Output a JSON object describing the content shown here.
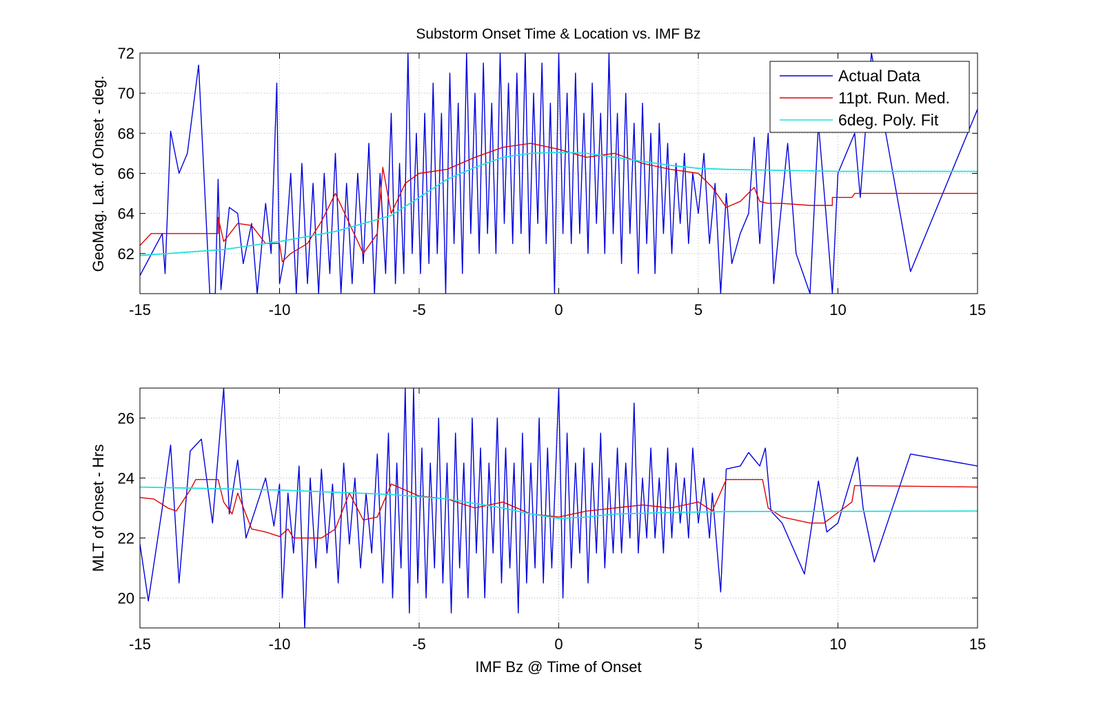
{
  "title": "Substorm Onset Time & Location vs. IMF Bz",
  "colors": {
    "actual": "#0000dd",
    "median": "#e00000",
    "fit": "#20e0e0",
    "grid": "#b0b0b0"
  },
  "legend": {
    "placement": "top-right",
    "entries": [
      "Actual Data",
      "11pt. Run. Med.",
      "6deg. Poly. Fit"
    ]
  },
  "chart_data": [
    {
      "type": "line",
      "xlabel": "",
      "ylabel": "GeoMag. Lat. of Onset - deg.",
      "xlim": [
        -15,
        15
      ],
      "ylim": [
        60,
        72
      ],
      "xticks": [
        -15,
        -10,
        -5,
        0,
        5,
        10,
        15
      ],
      "yticks": [
        62,
        64,
        66,
        68,
        70,
        72
      ],
      "grid": true,
      "series": [
        {
          "name": "Actual Data",
          "color": "#0000dd",
          "x": [
            -15,
            -14.2,
            -14.1,
            -13.9,
            -13.6,
            -13.3,
            -12.9,
            -12.5,
            -12.3,
            -12.2,
            -12.1,
            -11.8,
            -11.5,
            -11.3,
            -11,
            -10.8,
            -10.5,
            -10.3,
            -10.1,
            -10,
            -9.8,
            -9.6,
            -9.4,
            -9.2,
            -9,
            -8.8,
            -8.6,
            -8.4,
            -8.2,
            -8,
            -7.8,
            -7.6,
            -7.4,
            -7.2,
            -7,
            -6.8,
            -6.6,
            -6.4,
            -6.2,
            -6,
            -5.85,
            -5.7,
            -5.55,
            -5.4,
            -5.25,
            -5.1,
            -4.95,
            -4.8,
            -4.65,
            -4.5,
            -4.35,
            -4.2,
            -4.05,
            -3.9,
            -3.75,
            -3.6,
            -3.45,
            -3.3,
            -3.15,
            -3,
            -2.85,
            -2.7,
            -2.55,
            -2.4,
            -2.25,
            -2.1,
            -1.95,
            -1.8,
            -1.65,
            -1.5,
            -1.35,
            -1.2,
            -1.05,
            -0.9,
            -0.75,
            -0.6,
            -0.45,
            -0.3,
            -0.15,
            0,
            0.15,
            0.3,
            0.45,
            0.6,
            0.75,
            0.9,
            1.05,
            1.2,
            1.35,
            1.5,
            1.65,
            1.8,
            1.95,
            2.1,
            2.25,
            2.4,
            2.55,
            2.7,
            2.85,
            3,
            3.15,
            3.3,
            3.45,
            3.6,
            3.75,
            3.9,
            4.05,
            4.2,
            4.35,
            4.5,
            4.65,
            4.8,
            5,
            5.2,
            5.4,
            5.6,
            5.8,
            6,
            6.2,
            6.5,
            6.8,
            7,
            7.2,
            7.5,
            7.7,
            8.2,
            8.5,
            9,
            9.3,
            9.6,
            9.8,
            10,
            10.6,
            10.8,
            11.2,
            12.6,
            15
          ],
          "y": [
            60.9,
            63,
            61,
            68.1,
            66,
            67,
            71.4,
            60,
            60,
            65.7,
            60.2,
            64.3,
            64,
            61.5,
            63.5,
            60,
            64.5,
            62,
            70.5,
            60.5,
            62,
            66,
            60,
            66.5,
            60.5,
            65.5,
            60,
            66,
            61,
            67,
            60,
            65.5,
            60.5,
            66,
            61.5,
            67.5,
            60,
            66,
            61,
            69,
            60.5,
            66.5,
            61,
            72,
            62,
            68,
            61,
            69,
            61.5,
            70.5,
            62,
            69,
            60,
            71,
            62.5,
            69.5,
            61,
            72,
            63,
            70,
            62,
            71.5,
            63,
            69.5,
            62,
            72,
            63.5,
            70.5,
            62.5,
            71,
            63,
            72,
            62,
            70,
            63.5,
            71.5,
            62.5,
            69.5,
            60,
            72,
            63,
            70,
            62.5,
            71,
            63,
            69,
            62,
            70.5,
            63.5,
            69,
            62,
            72,
            63,
            69,
            61.5,
            70,
            63,
            68.5,
            61,
            69.5,
            62.5,
            68,
            61,
            68.5,
            63,
            67.5,
            62,
            66.5,
            63.5,
            67,
            62.5,
            66,
            64,
            67,
            62.5,
            65.5,
            60,
            65,
            61.5,
            63,
            64,
            67.8,
            62.5,
            68,
            60.5,
            67.5,
            62,
            60,
            68.5,
            63.5,
            60,
            66,
            68,
            64.8,
            72,
            61.1,
            69.2
          ]
        },
        {
          "name": "11pt. Run. Med.",
          "color": "#e00000",
          "x": [
            -15,
            -14.6,
            -12.2,
            -12.2,
            -12,
            -11.5,
            -11,
            -10.5,
            -10,
            -9.9,
            -9.6,
            -9,
            -8.5,
            -8,
            -7.5,
            -7,
            -6.5,
            -6.3,
            -6,
            -5.5,
            -5,
            -4,
            -3,
            -2,
            -1,
            0,
            1,
            2,
            3,
            4,
            5,
            5.5,
            6,
            6.5,
            7,
            7.2,
            7.5,
            8,
            9,
            9.8,
            9.8,
            10.5,
            10.6,
            15
          ],
          "y": [
            62.4,
            63,
            63,
            63.8,
            62.6,
            63.5,
            63.4,
            62.5,
            62.5,
            61.6,
            62,
            62.5,
            63.6,
            65,
            63.5,
            62,
            63,
            66.3,
            64,
            65.5,
            66,
            66.2,
            66.8,
            67.3,
            67.5,
            67.2,
            66.8,
            67,
            66.5,
            66.2,
            66,
            65.3,
            64.3,
            64.6,
            65.3,
            64.6,
            64.5,
            64.5,
            64.4,
            64.4,
            64.8,
            64.8,
            65,
            65
          ]
        },
        {
          "name": "6deg. Poly. Fit",
          "color": "#20e0e0",
          "x": [
            -15,
            -12,
            -10,
            -8,
            -6,
            -5,
            -4,
            -3,
            -2,
            -1,
            0,
            1,
            2,
            3,
            4,
            5,
            6,
            8,
            10,
            15
          ],
          "y": [
            61.9,
            62.2,
            62.6,
            63.1,
            63.9,
            64.8,
            65.7,
            66.3,
            66.8,
            67,
            67.05,
            67,
            66.8,
            66.6,
            66.4,
            66.25,
            66.2,
            66.15,
            66.1,
            66.1
          ]
        }
      ]
    },
    {
      "type": "line",
      "xlabel": "IMF Bz @ Time of Onset",
      "ylabel": "MLT of Onset - Hrs",
      "xlim": [
        -15,
        15
      ],
      "ylim": [
        19,
        27
      ],
      "xticks": [
        -15,
        -10,
        -5,
        0,
        5,
        10,
        15
      ],
      "yticks": [
        20,
        22,
        24,
        26
      ],
      "grid": true,
      "series": [
        {
          "name": "Actual Data",
          "color": "#0000dd",
          "x": [
            -15,
            -14.7,
            -14.2,
            -13.9,
            -13.6,
            -13.2,
            -12.8,
            -12.4,
            -12,
            -11.8,
            -11.5,
            -11.2,
            -10.5,
            -10.2,
            -10,
            -9.9,
            -9.7,
            -9.5,
            -9.3,
            -9.1,
            -8.9,
            -8.7,
            -8.5,
            -8.3,
            -8.1,
            -7.9,
            -7.7,
            -7.5,
            -7.3,
            -7.1,
            -6.9,
            -6.7,
            -6.5,
            -6.3,
            -6.1,
            -5.95,
            -5.8,
            -5.65,
            -5.5,
            -5.35,
            -5.2,
            -5.05,
            -4.9,
            -4.75,
            -4.6,
            -4.45,
            -4.3,
            -4.15,
            -4,
            -3.85,
            -3.7,
            -3.55,
            -3.4,
            -3.25,
            -3.1,
            -2.95,
            -2.8,
            -2.65,
            -2.5,
            -2.35,
            -2.2,
            -2.05,
            -1.9,
            -1.75,
            -1.6,
            -1.45,
            -1.3,
            -1.15,
            -1,
            -0.85,
            -0.7,
            -0.55,
            -0.4,
            -0.25,
            -0.1,
            0,
            0.15,
            0.3,
            0.45,
            0.6,
            0.75,
            0.9,
            1.05,
            1.2,
            1.35,
            1.5,
            1.65,
            1.8,
            1.95,
            2.1,
            2.25,
            2.4,
            2.55,
            2.7,
            2.85,
            3,
            3.15,
            3.3,
            3.45,
            3.6,
            3.75,
            3.9,
            4.05,
            4.2,
            4.35,
            4.5,
            4.65,
            4.8,
            5,
            5.2,
            5.4,
            5.5,
            5.8,
            6,
            6.5,
            6.8,
            7.2,
            7.4,
            7.6,
            8,
            8.8,
            9.3,
            9.6,
            10,
            10.7,
            10.9,
            11.3,
            12.6,
            15
          ],
          "y": [
            21.8,
            19.9,
            23,
            25.1,
            20.5,
            24.9,
            25.3,
            22.5,
            27,
            22.8,
            24.6,
            22,
            24,
            22.4,
            23.8,
            20,
            23.5,
            21.5,
            24.4,
            19,
            24,
            21,
            24.3,
            21.5,
            23.8,
            20.5,
            24.5,
            21.8,
            24,
            21,
            23.5,
            21.5,
            24.8,
            20.5,
            25.5,
            20,
            24.5,
            21,
            27,
            19.5,
            27,
            20.5,
            25,
            20,
            24.5,
            21,
            26,
            20.5,
            24.5,
            19.5,
            25.5,
            21,
            24.5,
            20,
            26,
            21.5,
            25,
            20,
            24.5,
            21.5,
            26,
            20.5,
            25,
            21,
            24.5,
            19.5,
            25.5,
            20.5,
            24.5,
            21,
            26,
            20.5,
            25,
            21,
            24.5,
            27,
            20,
            25.5,
            21,
            24.5,
            21.5,
            25,
            20.5,
            24.5,
            21.5,
            25.5,
            21,
            24,
            21.5,
            25,
            21.5,
            24.5,
            22,
            26.5,
            21.5,
            24,
            22,
            25,
            22,
            24,
            21.5,
            25,
            22,
            24.5,
            22.5,
            24,
            22,
            25,
            22.5,
            24,
            22,
            23.5,
            20.2,
            24.3,
            24.4,
            24.85,
            24.4,
            25,
            22.9,
            22.5,
            20.8,
            23.9,
            22.2,
            22.5,
            24.7,
            23,
            21.2,
            24.8,
            24.4
          ]
        },
        {
          "name": "11pt. Run. Med.",
          "color": "#e00000",
          "x": [
            -15,
            -14.5,
            -14,
            -13.7,
            -13.2,
            -13,
            -12.2,
            -12,
            -11.7,
            -11.5,
            -11,
            -10.5,
            -10,
            -9.7,
            -9.5,
            -8.5,
            -8,
            -7.5,
            -7,
            -6.5,
            -6,
            -5,
            -4,
            -3,
            -2,
            -1,
            0,
            1,
            2,
            3,
            4,
            5,
            5.5,
            6,
            7.3,
            7.5,
            8,
            9,
            9.5,
            10.5,
            10.6,
            15
          ],
          "y": [
            23.35,
            23.3,
            23,
            22.9,
            23.6,
            23.95,
            23.95,
            23.2,
            22.8,
            23.5,
            22.3,
            22.2,
            22.05,
            22.3,
            22,
            22,
            22.3,
            23.5,
            22.6,
            22.7,
            23.8,
            23.4,
            23.3,
            23,
            23.2,
            22.8,
            22.7,
            22.9,
            23,
            23.1,
            23,
            23.2,
            22.9,
            23.95,
            23.95,
            23,
            22.7,
            22.5,
            22.5,
            23.2,
            23.75,
            23.7
          ]
        },
        {
          "name": "6deg. Poly. Fit",
          "color": "#20e0e0",
          "x": [
            -15,
            -10,
            -6,
            -4,
            -2,
            -1,
            0,
            1,
            2,
            4,
            6,
            15
          ],
          "y": [
            23.7,
            23.6,
            23.45,
            23.3,
            23,
            22.8,
            22.65,
            22.7,
            22.8,
            22.85,
            22.88,
            22.9
          ]
        }
      ]
    }
  ]
}
